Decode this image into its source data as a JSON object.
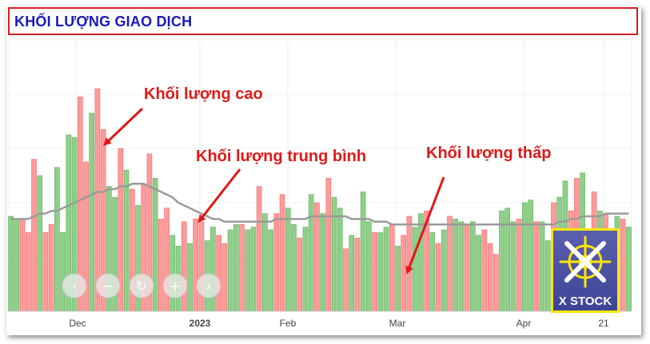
{
  "header": {
    "title": "KHỐI LƯỢNG GIAO DỊCH"
  },
  "annotations": {
    "high": "Khối lượng cao",
    "average": "Khối lượng trung bình",
    "low": "Khối lượng thấp"
  },
  "logo": {
    "text": "X STOCK",
    "icon": "ship-wheel-icon"
  },
  "controls": [
    {
      "name": "chevron-left-icon",
      "glyph": "‹"
    },
    {
      "name": "zoom-out-icon",
      "glyph": "−"
    },
    {
      "name": "reset-icon",
      "glyph": "↻"
    },
    {
      "name": "zoom-in-icon",
      "glyph": "+"
    },
    {
      "name": "chevron-right-icon",
      "glyph": "›"
    }
  ],
  "chart_data": {
    "type": "bar",
    "title": "KHỐI LƯỢNG GIAO DỊCH",
    "xlabel": "",
    "ylabel": "",
    "ylim": [
      0,
      100
    ],
    "grid": true,
    "x_ticks": [
      "Dec",
      "2023",
      "Feb",
      "Mar",
      "Apr",
      "21"
    ],
    "colors": {
      "up": "#8fcf8a",
      "down": "#ff9a9a",
      "average_line": "#9a9a9a"
    },
    "series": [
      {
        "type": "bar",
        "values": [
          35,
          34,
          34,
          29,
          56,
          50,
          29,
          32,
          53,
          29,
          65,
          64,
          79,
          55,
          73,
          82,
          67,
          46,
          42,
          60,
          52,
          45,
          39,
          47,
          58,
          49,
          34,
          38,
          28,
          24,
          33,
          25,
          34,
          33,
          26,
          31,
          28,
          25,
          30,
          32,
          32,
          30,
          31,
          46,
          36,
          30,
          36,
          43,
          38,
          32,
          27,
          31,
          43,
          40,
          36,
          49,
          42,
          38,
          23,
          28,
          27,
          44,
          33,
          29,
          29,
          31,
          32,
          24,
          28,
          35,
          31,
          36,
          37,
          29,
          25,
          30,
          35,
          34,
          33,
          32,
          33,
          28,
          30,
          25,
          21,
          37,
          38,
          33,
          34,
          40,
          41,
          33,
          33,
          26,
          40,
          42,
          48,
          37,
          49,
          51,
          29,
          44,
          37,
          36,
          27,
          35,
          34,
          31
        ],
        "directions": [
          "u",
          "u",
          "d",
          "d",
          "d",
          "u",
          "d",
          "d",
          "u",
          "u",
          "u",
          "u",
          "d",
          "d",
          "u",
          "d",
          "d",
          "u",
          "u",
          "d",
          "u",
          "d",
          "u",
          "d",
          "d",
          "u",
          "d",
          "d",
          "u",
          "u",
          "d",
          "u",
          "d",
          "d",
          "u",
          "u",
          "d",
          "d",
          "u",
          "u",
          "d",
          "u",
          "u",
          "d",
          "u",
          "u",
          "d",
          "d",
          "u",
          "u",
          "d",
          "u",
          "u",
          "d",
          "u",
          "d",
          "u",
          "u",
          "d",
          "u",
          "d",
          "u",
          "u",
          "d",
          "u",
          "u",
          "d",
          "u",
          "d",
          "d",
          "u",
          "u",
          "d",
          "u",
          "d",
          "u",
          "d",
          "u",
          "u",
          "d",
          "u",
          "u",
          "d",
          "d",
          "d",
          "u",
          "u",
          "u",
          "d",
          "u",
          "u",
          "d",
          "u",
          "u",
          "d",
          "u",
          "u",
          "d",
          "d",
          "u",
          "d",
          "d",
          "u",
          "d",
          "u",
          "u",
          "d",
          "u"
        ]
      },
      {
        "type": "line",
        "values": [
          34,
          34,
          34,
          34,
          35,
          36,
          36,
          37,
          37,
          38,
          39,
          40,
          41,
          42,
          43,
          44,
          44,
          45,
          45,
          46,
          46,
          47,
          47,
          47,
          46,
          45,
          44,
          43,
          42,
          40,
          39,
          38,
          37,
          36,
          35,
          34,
          34,
          33,
          33,
          33,
          33,
          33,
          33,
          33,
          33,
          33,
          34,
          34,
          34,
          34,
          34,
          34,
          35,
          35,
          35,
          35,
          35,
          35,
          35,
          34,
          34,
          34,
          34,
          33,
          33,
          33,
          32,
          32,
          32,
          32,
          32,
          32,
          32,
          32,
          32,
          32,
          32,
          32,
          32,
          32,
          32,
          32,
          32,
          32,
          32,
          32,
          32,
          32,
          32,
          32,
          32,
          32,
          32,
          32,
          32,
          33,
          33,
          34,
          34,
          35,
          35,
          35,
          35,
          36,
          36,
          36,
          36,
          36
        ]
      }
    ]
  }
}
